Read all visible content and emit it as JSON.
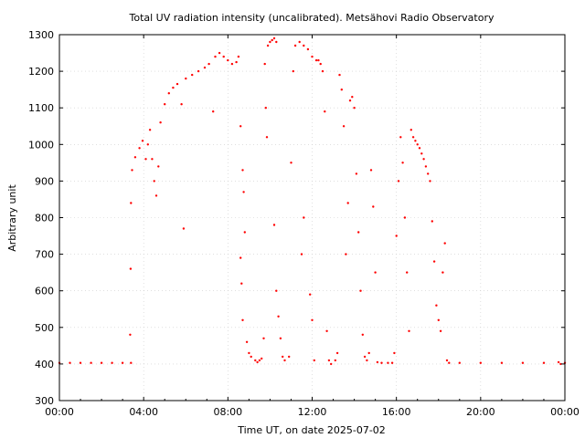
{
  "chart_data": {
    "type": "scatter",
    "title": "Total UV radiation intensity (uncalibrated). Metsähovi Radio Observatory",
    "xlabel": "Time UT, on date 2025-07-02",
    "ylabel": "Arbitrary unit",
    "xlim": [
      0,
      24
    ],
    "ylim": [
      300,
      1300
    ],
    "grid": true,
    "x_ticks": [
      0,
      4,
      8,
      12,
      16,
      20,
      24
    ],
    "x_tick_labels": [
      "00:00",
      "04:00",
      "08:00",
      "12:00",
      "16:00",
      "20:00",
      "00:00"
    ],
    "y_ticks": [
      300,
      400,
      500,
      600,
      700,
      800,
      900,
      1000,
      1100,
      1200,
      1300
    ],
    "y_tick_labels": [
      "300",
      "400",
      "500",
      "600",
      "700",
      "800",
      "900",
      "1000",
      "1100",
      "1200",
      "1300"
    ],
    "marker_color": "#ff0000",
    "series": [
      {
        "x_unit": "hours UT",
        "y_unit": "arbitrary",
        "points": [
          [
            0.0,
            403
          ],
          [
            0.5,
            403
          ],
          [
            1.0,
            403
          ],
          [
            1.5,
            403
          ],
          [
            2.0,
            403
          ],
          [
            2.5,
            403
          ],
          [
            3.0,
            403
          ],
          [
            3.4,
            403
          ],
          [
            3.36,
            480
          ],
          [
            3.38,
            660
          ],
          [
            3.4,
            840
          ],
          [
            3.45,
            930
          ],
          [
            3.6,
            965
          ],
          [
            3.8,
            990
          ],
          [
            3.95,
            1010
          ],
          [
            4.1,
            960
          ],
          [
            4.2,
            1000
          ],
          [
            4.3,
            1040
          ],
          [
            4.4,
            960
          ],
          [
            4.5,
            900
          ],
          [
            4.6,
            860
          ],
          [
            4.7,
            940
          ],
          [
            4.8,
            1060
          ],
          [
            5.0,
            1110
          ],
          [
            5.2,
            1140
          ],
          [
            5.4,
            1155
          ],
          [
            5.6,
            1165
          ],
          [
            5.8,
            1110
          ],
          [
            5.9,
            770
          ],
          [
            6.0,
            1180
          ],
          [
            6.3,
            1190
          ],
          [
            6.6,
            1200
          ],
          [
            6.9,
            1210
          ],
          [
            7.1,
            1220
          ],
          [
            7.3,
            1090
          ],
          [
            7.4,
            1240
          ],
          [
            7.6,
            1250
          ],
          [
            7.8,
            1240
          ],
          [
            8.0,
            1230
          ],
          [
            8.2,
            1220
          ],
          [
            8.4,
            1225
          ],
          [
            8.5,
            1240
          ],
          [
            8.6,
            1050
          ],
          [
            8.7,
            930
          ],
          [
            8.75,
            870
          ],
          [
            8.8,
            760
          ],
          [
            8.6,
            690
          ],
          [
            8.65,
            620
          ],
          [
            8.7,
            520
          ],
          [
            8.9,
            460
          ],
          [
            9.0,
            430
          ],
          [
            9.1,
            420
          ],
          [
            9.3,
            410
          ],
          [
            9.4,
            405
          ],
          [
            9.5,
            410
          ],
          [
            9.6,
            415
          ],
          [
            9.7,
            470
          ],
          [
            9.75,
            1220
          ],
          [
            9.8,
            1100
          ],
          [
            9.85,
            1020
          ],
          [
            9.9,
            1270
          ],
          [
            10.0,
            1280
          ],
          [
            10.1,
            1285
          ],
          [
            10.2,
            1290
          ],
          [
            10.3,
            1280
          ],
          [
            10.2,
            780
          ],
          [
            10.3,
            600
          ],
          [
            10.4,
            530
          ],
          [
            10.5,
            470
          ],
          [
            10.6,
            420
          ],
          [
            10.7,
            410
          ],
          [
            10.9,
            420
          ],
          [
            11.0,
            950
          ],
          [
            11.1,
            1200
          ],
          [
            11.2,
            1270
          ],
          [
            11.4,
            1280
          ],
          [
            11.6,
            1270
          ],
          [
            11.8,
            1260
          ],
          [
            12.0,
            1240
          ],
          [
            12.2,
            1230
          ],
          [
            11.5,
            700
          ],
          [
            11.6,
            800
          ],
          [
            11.9,
            590
          ],
          [
            12.0,
            520
          ],
          [
            12.1,
            410
          ],
          [
            12.3,
            1230
          ],
          [
            12.4,
            1220
          ],
          [
            12.5,
            1200
          ],
          [
            12.6,
            1090
          ],
          [
            12.7,
            490
          ],
          [
            12.8,
            410
          ],
          [
            12.9,
            400
          ],
          [
            13.1,
            410
          ],
          [
            13.2,
            430
          ],
          [
            13.3,
            1190
          ],
          [
            13.4,
            1150
          ],
          [
            13.5,
            1050
          ],
          [
            13.6,
            700
          ],
          [
            13.7,
            840
          ],
          [
            13.8,
            1120
          ],
          [
            13.9,
            1130
          ],
          [
            14.0,
            1100
          ],
          [
            14.1,
            920
          ],
          [
            14.2,
            760
          ],
          [
            14.3,
            600
          ],
          [
            14.4,
            480
          ],
          [
            14.5,
            420
          ],
          [
            14.6,
            410
          ],
          [
            14.7,
            430
          ],
          [
            14.8,
            930
          ],
          [
            14.9,
            830
          ],
          [
            15.0,
            650
          ],
          [
            15.1,
            405
          ],
          [
            15.3,
            403
          ],
          [
            15.6,
            403
          ],
          [
            15.8,
            403
          ],
          [
            15.9,
            430
          ],
          [
            16.0,
            750
          ],
          [
            16.1,
            900
          ],
          [
            16.2,
            1020
          ],
          [
            16.3,
            950
          ],
          [
            16.4,
            800
          ],
          [
            16.5,
            650
          ],
          [
            16.6,
            490
          ],
          [
            16.7,
            1040
          ],
          [
            16.8,
            1020
          ],
          [
            16.9,
            1010
          ],
          [
            17.0,
            1000
          ],
          [
            17.1,
            990
          ],
          [
            17.2,
            975
          ],
          [
            17.3,
            960
          ],
          [
            17.4,
            940
          ],
          [
            17.5,
            920
          ],
          [
            17.6,
            900
          ],
          [
            17.7,
            790
          ],
          [
            17.8,
            680
          ],
          [
            17.9,
            560
          ],
          [
            18.0,
            520
          ],
          [
            18.1,
            490
          ],
          [
            18.2,
            650
          ],
          [
            18.3,
            730
          ],
          [
            18.4,
            410
          ],
          [
            18.5,
            403
          ],
          [
            19.0,
            403
          ],
          [
            20.0,
            403
          ],
          [
            21.0,
            403
          ],
          [
            22.0,
            403
          ],
          [
            23.0,
            403
          ],
          [
            23.7,
            405
          ],
          [
            23.8,
            400
          ],
          [
            24.0,
            403
          ]
        ]
      }
    ]
  }
}
